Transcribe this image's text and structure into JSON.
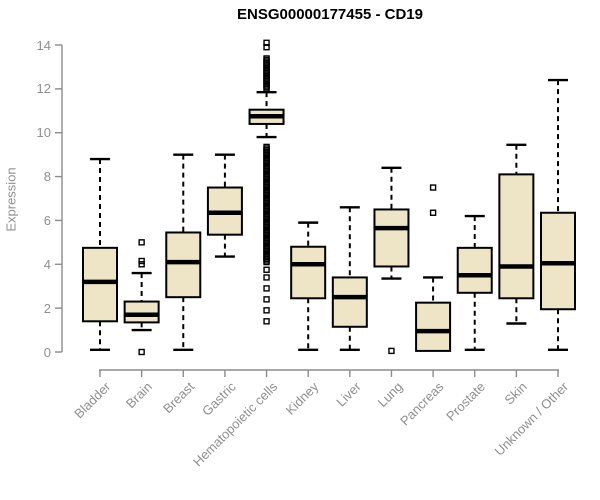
{
  "style": {
    "box_fill": "#EDE5C6",
    "box_stroke": "#000000",
    "median_color": "#000000",
    "whisker_color": "#000000",
    "axis_color": "#8c8c8c",
    "tick_label_color": "#8f8f8f",
    "title_color": "#000000",
    "background": "#ffffff"
  },
  "chart_data": {
    "type": "boxplot",
    "title": "ENSG00000177455 - CD19",
    "xlabel": "",
    "ylabel": "Expression",
    "ylim": [
      0,
      14
    ],
    "y_ticks": [
      0,
      2,
      4,
      6,
      8,
      10,
      12,
      14
    ],
    "grid": false,
    "legend": false,
    "categories": [
      "Bladder",
      "Brain",
      "Breast",
      "Gastric",
      "Hematopoietic cells",
      "Kidney",
      "Liver",
      "Lung",
      "Pancreas",
      "Prostate",
      "Skin",
      "Unknown / Other"
    ],
    "boxes": [
      {
        "label": "Bladder",
        "whisker_low": 0.1,
        "q1": 1.4,
        "median": 3.2,
        "q3": 4.75,
        "whisker_high": 8.8,
        "outliers": []
      },
      {
        "label": "Brain",
        "whisker_low": 1.0,
        "q1": 1.35,
        "median": 1.7,
        "q3": 2.3,
        "whisker_high": 3.6,
        "outliers": [
          5.0,
          4.15,
          4.0,
          0.0
        ]
      },
      {
        "label": "Breast",
        "whisker_low": 0.1,
        "q1": 2.5,
        "median": 4.1,
        "q3": 5.45,
        "whisker_high": 9.0,
        "outliers": []
      },
      {
        "label": "Gastric",
        "whisker_low": 4.35,
        "q1": 5.35,
        "median": 6.35,
        "q3": 7.5,
        "whisker_high": 9.0,
        "outliers": []
      },
      {
        "label": "Hematopoietic cells",
        "whisker_low": 9.8,
        "q1": 10.4,
        "median": 10.75,
        "q3": 11.05,
        "whisker_high": 11.85,
        "outliers": [
          14.1,
          13.9,
          3.75,
          3.4,
          2.9,
          2.4,
          1.9,
          1.4
        ],
        "outlier_bands": [
          {
            "min": 12.0,
            "max": 13.45
          },
          {
            "min": 4.1,
            "max": 9.4
          }
        ]
      },
      {
        "label": "Kidney",
        "whisker_low": 0.1,
        "q1": 2.45,
        "median": 4.0,
        "q3": 4.8,
        "whisker_high": 5.9,
        "outliers": []
      },
      {
        "label": "Liver",
        "whisker_low": 0.1,
        "q1": 1.15,
        "median": 2.5,
        "q3": 3.4,
        "whisker_high": 6.6,
        "outliers": []
      },
      {
        "label": "Lung",
        "whisker_low": 3.35,
        "q1": 3.9,
        "median": 5.65,
        "q3": 6.5,
        "whisker_high": 8.4,
        "outliers": [
          0.05
        ]
      },
      {
        "label": "Pancreas",
        "whisker_low": 0.05,
        "q1": 0.05,
        "median": 0.95,
        "q3": 2.25,
        "whisker_high": 3.4,
        "outliers": [
          7.5,
          6.35
        ]
      },
      {
        "label": "Prostate",
        "whisker_low": 0.1,
        "q1": 2.7,
        "median": 3.5,
        "q3": 4.75,
        "whisker_high": 6.2,
        "outliers": []
      },
      {
        "label": "Skin",
        "whisker_low": 1.3,
        "q1": 2.45,
        "median": 3.9,
        "q3": 8.1,
        "whisker_high": 9.45,
        "outliers": []
      },
      {
        "label": "Unknown / Other",
        "whisker_low": 0.1,
        "q1": 1.95,
        "median": 4.05,
        "q3": 6.35,
        "whisker_high": 12.4,
        "outliers": []
      }
    ]
  }
}
